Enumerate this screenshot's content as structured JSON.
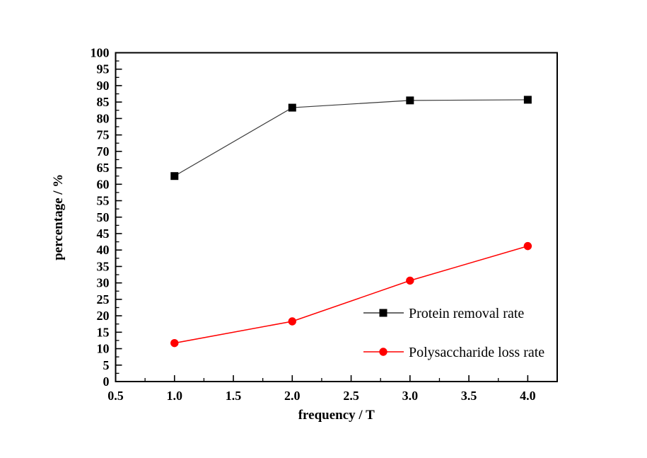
{
  "figure": {
    "background": "#ffffff",
    "frame_color": "#000000"
  },
  "chart_data": {
    "type": "line",
    "title": "",
    "xlabel": "frequency / T",
    "ylabel": "percentage / %",
    "xlim": [
      0.5,
      4.25
    ],
    "ylim": [
      0,
      100
    ],
    "x_major_ticks": [
      0.5,
      1.0,
      1.5,
      2.0,
      2.5,
      3.0,
      3.5,
      4.0
    ],
    "x_minor_ticks": [
      0.75,
      1.25,
      1.75,
      2.25,
      2.75,
      3.25,
      3.75
    ],
    "y_major_step": 5,
    "y_minor_step": 2.5,
    "grid": false,
    "legend_position": "inside lower-right",
    "x": [
      1.0,
      2.0,
      3.0,
      4.0
    ],
    "series": [
      {
        "name": "Protein removal rate",
        "values": [
          62.5,
          83.3,
          85.5,
          85.7
        ],
        "marker": "square",
        "marker_color": "#000000",
        "line_color": "#3a3a3a"
      },
      {
        "name": "Polysaccharide loss rate",
        "values": [
          11.7,
          18.3,
          30.7,
          41.2
        ],
        "marker": "circle",
        "marker_color": "#ff0000",
        "line_color": "#ff0000"
      }
    ]
  }
}
